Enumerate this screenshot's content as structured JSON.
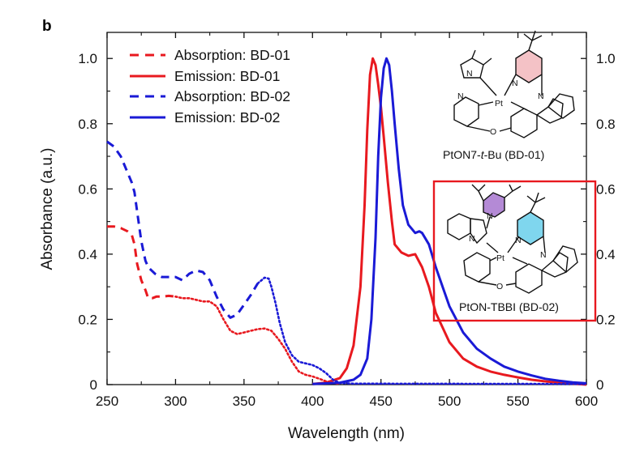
{
  "panel_label": "b",
  "colors": {
    "bd01": "#e8191f",
    "bd02": "#1a1ad6",
    "box": "#e8191f",
    "pyridine_bd01": "#f4c2c6",
    "pyridine_bd02": "#7fd6ee",
    "aryl_bd02": "#b48ad6"
  },
  "chart_data": {
    "type": "line",
    "title": "",
    "xlabel": "Wavelength (nm)",
    "ylabel": "Absorbance (a.u.)",
    "xlim": [
      250,
      600
    ],
    "ylim": [
      0,
      1.08
    ],
    "x_ticks": [
      "250",
      "300",
      "350",
      "400",
      "450",
      "500",
      "550",
      "600"
    ],
    "y_ticks_left": [
      "0",
      "0.2",
      "0.4",
      "0.6",
      "0.8",
      "1.0"
    ],
    "y_ticks_right": [
      "0",
      "0.2",
      "0.4",
      "0.6",
      "0.8",
      "1.0"
    ],
    "legend_position": "top-left",
    "series": [
      {
        "name": "Absorption: BD-01",
        "style": "dashed-dotted",
        "color": "#e8191f",
        "dash_until": 300,
        "x": [
          250,
          255,
          260,
          265,
          268,
          270,
          272,
          275,
          278,
          280,
          283,
          286,
          290,
          295,
          300,
          305,
          310,
          315,
          320,
          325,
          330,
          335,
          340,
          345,
          350,
          355,
          360,
          365,
          370,
          375,
          380,
          385,
          390,
          395,
          400,
          405,
          410,
          415,
          420
        ],
        "y": [
          0.485,
          0.485,
          0.48,
          0.47,
          0.46,
          0.43,
          0.37,
          0.32,
          0.29,
          0.265,
          0.265,
          0.27,
          0.27,
          0.272,
          0.27,
          0.265,
          0.265,
          0.26,
          0.255,
          0.255,
          0.24,
          0.2,
          0.165,
          0.155,
          0.16,
          0.165,
          0.17,
          0.172,
          0.165,
          0.14,
          0.11,
          0.07,
          0.04,
          0.03,
          0.025,
          0.018,
          0.01,
          0.005,
          0.002
        ]
      },
      {
        "name": "Emission: BD-01",
        "style": "solid",
        "color": "#e8191f",
        "x": [
          400,
          410,
          420,
          425,
          430,
          435,
          438,
          440,
          442,
          444,
          446,
          448,
          450,
          452,
          455,
          458,
          460,
          465,
          470,
          475,
          480,
          485,
          490,
          500,
          510,
          520,
          530,
          540,
          550,
          560,
          570,
          580,
          590,
          600
        ],
        "y": [
          0.002,
          0.006,
          0.02,
          0.05,
          0.12,
          0.3,
          0.55,
          0.78,
          0.95,
          1.0,
          0.98,
          0.92,
          0.85,
          0.76,
          0.62,
          0.5,
          0.43,
          0.405,
          0.395,
          0.4,
          0.36,
          0.3,
          0.22,
          0.13,
          0.08,
          0.055,
          0.04,
          0.03,
          0.022,
          0.015,
          0.01,
          0.006,
          0.003,
          0.0
        ]
      },
      {
        "name": "Absorption: BD-02",
        "style": "dashed-dotted",
        "color": "#1a1ad6",
        "dash_until": 360,
        "x": [
          250,
          255,
          260,
          265,
          268,
          270,
          272,
          275,
          278,
          280,
          285,
          290,
          295,
          300,
          305,
          310,
          315,
          320,
          325,
          330,
          335,
          340,
          345,
          350,
          355,
          360,
          365,
          368,
          370,
          373,
          376,
          380,
          385,
          390,
          395,
          400,
          405,
          410,
          415,
          420,
          430,
          600
        ],
        "y": [
          0.745,
          0.73,
          0.7,
          0.65,
          0.62,
          0.59,
          0.53,
          0.44,
          0.38,
          0.36,
          0.34,
          0.33,
          0.33,
          0.33,
          0.32,
          0.34,
          0.35,
          0.345,
          0.32,
          0.27,
          0.23,
          0.205,
          0.215,
          0.245,
          0.275,
          0.31,
          0.328,
          0.325,
          0.3,
          0.25,
          0.19,
          0.13,
          0.09,
          0.07,
          0.065,
          0.06,
          0.05,
          0.035,
          0.015,
          0.005,
          0.003,
          0.002
        ]
      },
      {
        "name": "Emission: BD-02",
        "style": "solid",
        "color": "#1a1ad6",
        "x": [
          400,
          420,
          430,
          435,
          440,
          443,
          446,
          448,
          450,
          452,
          454,
          456,
          458,
          460,
          463,
          466,
          470,
          475,
          478,
          480,
          485,
          490,
          495,
          500,
          510,
          520,
          530,
          540,
          550,
          560,
          570,
          580,
          590,
          600
        ],
        "y": [
          0.002,
          0.006,
          0.015,
          0.03,
          0.08,
          0.2,
          0.45,
          0.7,
          0.88,
          0.97,
          1.0,
          0.98,
          0.9,
          0.8,
          0.66,
          0.55,
          0.49,
          0.465,
          0.47,
          0.465,
          0.43,
          0.36,
          0.3,
          0.24,
          0.16,
          0.11,
          0.08,
          0.055,
          0.04,
          0.028,
          0.018,
          0.012,
          0.007,
          0.004
        ]
      }
    ]
  },
  "structures": {
    "bd01": {
      "caption": "PtON7-t-Bu (BD-01)",
      "caption_pre": "PtON7-",
      "caption_italic": "t",
      "caption_post": "-Bu (BD-01)"
    },
    "bd02": {
      "caption": "PtON-TBBI (BD-02)"
    },
    "atoms": {
      "N": "N",
      "Pt": "Pt",
      "O": "O"
    }
  }
}
